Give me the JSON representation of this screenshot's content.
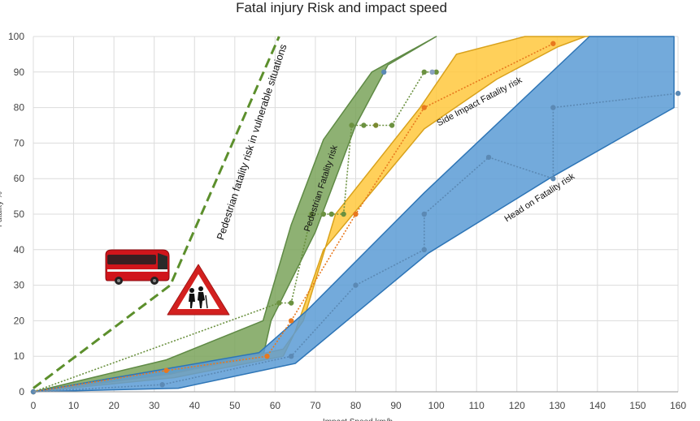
{
  "chart_data": {
    "type": "area",
    "title": "Fatal injury Risk and impact speed",
    "xlabel": "Impact Speed km/h",
    "ylabel": "Fatality %",
    "xlim": [
      0,
      160
    ],
    "ylim": [
      0,
      100
    ],
    "xticks": [
      0,
      10,
      20,
      30,
      40,
      50,
      60,
      70,
      80,
      90,
      100,
      110,
      120,
      130,
      140,
      150,
      160
    ],
    "yticks": [
      0,
      10,
      20,
      30,
      40,
      50,
      60,
      70,
      80,
      90,
      100
    ],
    "grid": true,
    "legend": "none",
    "bands": [
      {
        "name": "Pedestrian Fatality risk",
        "fill": "#7aa35a",
        "edge": "#5f8a45",
        "upper": {
          "x": [
            0,
            33,
            57,
            64,
            72,
            84,
            100
          ],
          "y": [
            0,
            9,
            20,
            47,
            71,
            90,
            100
          ]
        },
        "lower": {
          "x": [
            0,
            34,
            57,
            59,
            70,
            80,
            88,
            100
          ],
          "y": [
            0,
            5,
            10,
            20,
            45,
            75,
            92,
            100
          ]
        }
      },
      {
        "name": "Side Impact Fatality risk",
        "fill": "#ffc83d",
        "edge": "#d9a21c",
        "upper": {
          "x": [
            0,
            34,
            62,
            67,
            75,
            96,
            105,
            122,
            138
          ],
          "y": [
            0,
            5,
            12,
            20,
            50,
            80,
            95,
            100,
            100
          ]
        },
        "lower": {
          "x": [
            0,
            35,
            62,
            65,
            72,
            97,
            115,
            130,
            137
          ],
          "y": [
            0,
            4,
            10,
            17,
            40,
            74,
            88,
            97,
            100
          ]
        }
      },
      {
        "name": "Head on Fatality risk",
        "fill": "#5b9bd5",
        "edge": "#2e75b6",
        "upper": {
          "x": [
            0,
            56,
            68,
            97,
            138,
            159
          ],
          "y": [
            0,
            11,
            23,
            56,
            100,
            100
          ]
        },
        "lower": {
          "x": [
            0,
            36,
            65,
            98,
            128,
            159
          ],
          "y": [
            0,
            1,
            8,
            39,
            60,
            80
          ]
        }
      }
    ],
    "series": [
      {
        "name": "Pedestrian Fatality risk",
        "color": "#6b9140",
        "x": [
          0,
          61,
          64,
          69,
          72,
          74,
          77,
          79,
          82,
          89,
          97,
          100
        ],
        "y": [
          0,
          25,
          25,
          50,
          50,
          50,
          50,
          75,
          75,
          75,
          90,
          90
        ]
      },
      {
        "name": "Side Impact Fatality risk",
        "color": "#e8781e",
        "x": [
          0,
          33,
          58,
          64,
          80,
          97,
          129
        ],
        "y": [
          0,
          6,
          10,
          20,
          50,
          80,
          98
        ]
      },
      {
        "name": "Head on Fatality risk",
        "color": "#5b89b4",
        "x": [
          0,
          32,
          64,
          80,
          97,
          97,
          113,
          129,
          129,
          160
        ],
        "y": [
          0,
          2,
          10,
          30,
          40,
          50,
          66,
          60,
          80,
          84
        ]
      },
      {
        "name": "Pedestrian fatality risk in vulnerable situations",
        "color": "#5c8f2c",
        "dashed": true,
        "x": [
          0,
          34,
          61
        ],
        "y": [
          1,
          30,
          100
        ]
      }
    ],
    "extra_points": [
      {
        "x": 87,
        "y": 90,
        "color": "#5b89b4"
      },
      {
        "x": 99,
        "y": 90,
        "color": "#8aa0c0"
      },
      {
        "x": 85,
        "y": 75,
        "color": "#7a8a30"
      }
    ],
    "annotations": [
      {
        "text": "Pedestrian fatality risk in vulnerable situations",
        "x": 55,
        "y": 70,
        "rotate": -72,
        "size": "big"
      },
      {
        "text": "Pedestrian Fatality risk",
        "x": 72,
        "y": 57,
        "rotate": -72,
        "size": "normal"
      },
      {
        "text": "Side Impact Fatality risk",
        "x": 111,
        "y": 81,
        "rotate": -28,
        "size": "normal"
      },
      {
        "text": "Head on Fatality risk",
        "x": 126,
        "y": 54,
        "rotate": -33,
        "size": "normal"
      }
    ],
    "icons": [
      "bus-icon",
      "elderly-crossing-warning-icon"
    ]
  }
}
